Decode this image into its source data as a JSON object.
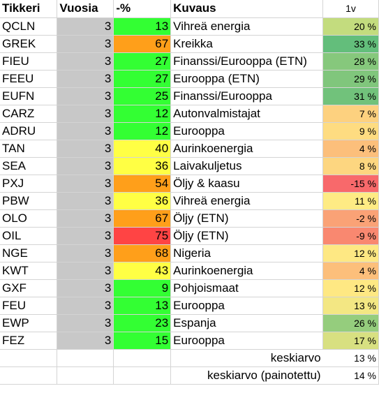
{
  "headers": {
    "ticker": "Tikkeri",
    "years": "Vuosia",
    "pct": "-%",
    "desc": "Kuvaus",
    "one_year": "1v"
  },
  "rows": [
    {
      "ticker": "QCLN",
      "years": "3",
      "pct": "13",
      "pct_color": "#33ff33",
      "desc": "Vihreä energia",
      "y1": "20 %",
      "y1_color": "#c3dc7e"
    },
    {
      "ticker": "GREK",
      "years": "3",
      "pct": "67",
      "pct_color": "#ff9f1a",
      "desc": "Kreikka",
      "y1": "33 %",
      "y1_color": "#63be7b"
    },
    {
      "ticker": "FIEU",
      "years": "3",
      "pct": "27",
      "pct_color": "#33ff33",
      "desc": "Finanssi/Eurooppa (ETN)",
      "y1": "28 %",
      "y1_color": "#86c87c"
    },
    {
      "ticker": "FEEU",
      "years": "3",
      "pct": "27",
      "pct_color": "#33ff33",
      "desc": "Eurooppa (ETN)",
      "y1": "29 %",
      "y1_color": "#80c67c"
    },
    {
      "ticker": "EUFN",
      "years": "3",
      "pct": "25",
      "pct_color": "#33ff33",
      "desc": "Finanssi/Eurooppa",
      "y1": "31 %",
      "y1_color": "#71c27b"
    },
    {
      "ticker": "CARZ",
      "years": "3",
      "pct": "12",
      "pct_color": "#33ff33",
      "desc": "Autonvalmistajat",
      "y1": "7 %",
      "y1_color": "#fdd17f"
    },
    {
      "ticker": "ADRU",
      "years": "3",
      "pct": "12",
      "pct_color": "#33ff33",
      "desc": "Eurooppa",
      "y1": "9 %",
      "y1_color": "#fedc81"
    },
    {
      "ticker": "TAN",
      "years": "3",
      "pct": "40",
      "pct_color": "#ffff44",
      "desc": "Aurinkoenergia",
      "y1": "4 %",
      "y1_color": "#fcbf7b"
    },
    {
      "ticker": "SEA",
      "years": "3",
      "pct": "36",
      "pct_color": "#ffff44",
      "desc": "Laivakuljetus",
      "y1": "8 %",
      "y1_color": "#fdd680"
    },
    {
      "ticker": "PXJ",
      "years": "3",
      "pct": "54",
      "pct_color": "#ff9f1a",
      "desc": "Öljy & kaasu",
      "y1": "-15 %",
      "y1_color": "#f8696b"
    },
    {
      "ticker": "PBW",
      "years": "3",
      "pct": "36",
      "pct_color": "#ffff44",
      "desc": "Vihreä energia",
      "y1": "11 %",
      "y1_color": "#feeb84"
    },
    {
      "ticker": "OLO",
      "years": "3",
      "pct": "67",
      "pct_color": "#ff9f1a",
      "desc": "Öljy (ETN)",
      "y1": "-2 %",
      "y1_color": "#faa276"
    },
    {
      "ticker": "OIL",
      "years": "3",
      "pct": "75",
      "pct_color": "#ff4444",
      "desc": "Öljy (ETN)",
      "y1": "-9 %",
      "y1_color": "#f98870"
    },
    {
      "ticker": "NGE",
      "years": "3",
      "pct": "68",
      "pct_color": "#ff9f1a",
      "desc": "Nigeria",
      "y1": "12 %",
      "y1_color": "#fee883"
    },
    {
      "ticker": "KWT",
      "years": "3",
      "pct": "43",
      "pct_color": "#ffff44",
      "desc": "Aurinkoenergia",
      "y1": "4 %",
      "y1_color": "#fcbf7b"
    },
    {
      "ticker": "GXF",
      "years": "3",
      "pct": "9",
      "pct_color": "#33ff33",
      "desc": "Pohjoismaat",
      "y1": "12 %",
      "y1_color": "#fee883"
    },
    {
      "ticker": "FEU",
      "years": "3",
      "pct": "13",
      "pct_color": "#33ff33",
      "desc": "Eurooppa",
      "y1": "13 %",
      "y1_color": "#f3e783"
    },
    {
      "ticker": "EWP",
      "years": "3",
      "pct": "23",
      "pct_color": "#33ff33",
      "desc": "Espanja",
      "y1": "26 %",
      "y1_color": "#95cd7d"
    },
    {
      "ticker": "FEZ",
      "years": "3",
      "pct": "15",
      "pct_color": "#33ff33",
      "desc": "Eurooppa",
      "y1": "17 %",
      "y1_color": "#d8e081"
    }
  ],
  "summary": [
    {
      "label": "keskiarvo",
      "value": "13 %"
    },
    {
      "label": "keskiarvo (painotettu)",
      "value": "14 %"
    }
  ]
}
